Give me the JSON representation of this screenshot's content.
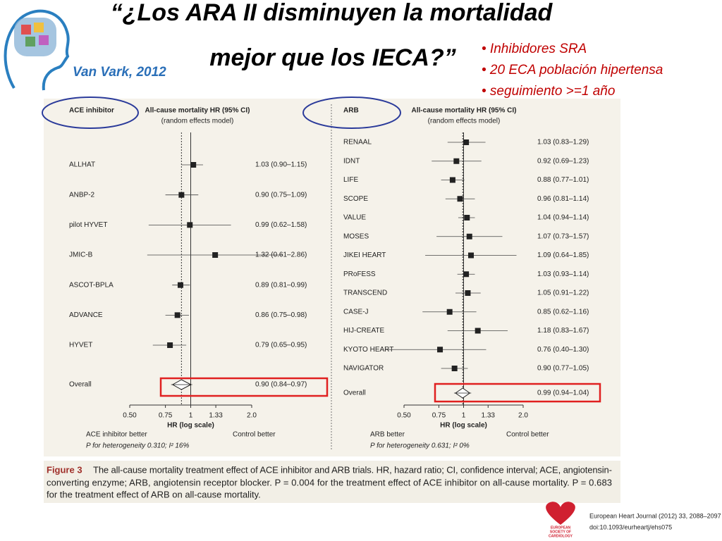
{
  "title": [
    "“¿Los ARA II disminuyen la mortalidad",
    "mejor que los IECA?”"
  ],
  "citation": "Van Vark, 2012",
  "bullets": [
    "• Inhibidores SRA",
    "• 20 ECA población hipertensa",
    "• seguimiento >=1 año"
  ],
  "chart_data": [
    {
      "type": "forest",
      "group_label": "ACE inhibitor",
      "title": "All-cause mortality HR (95% CI)",
      "subtitle": "(random effects model)",
      "categories": [
        "ALLHAT",
        "ANBP-2",
        "pilot HYVET",
        "JMIC-B",
        "ASCOT-BPLA",
        "ADVANCE",
        "HYVET"
      ],
      "values": [
        1.03,
        0.9,
        0.99,
        1.32,
        0.89,
        0.86,
        0.79
      ],
      "ci_low": [
        0.9,
        0.75,
        0.62,
        0.61,
        0.81,
        0.75,
        0.65
      ],
      "ci_high": [
        1.15,
        1.09,
        1.58,
        2.86,
        0.99,
        0.98,
        0.95
      ],
      "value_labels": [
        "1.03 (0.90–1.15)",
        "0.90 (0.75–1.09)",
        "0.99 (0.62–1.58)",
        "1.32 (0.61–2.86)",
        "0.89 (0.81–0.99)",
        "0.86 (0.75–0.98)",
        "0.79 (0.65–0.95)"
      ],
      "overall": {
        "label": "Overall",
        "value": 0.9,
        "ci_low": 0.84,
        "ci_high": 0.97,
        "value_label": "0.90 (0.84–0.97)"
      },
      "xlabel": "HR (log scale)",
      "xscale": "log",
      "xlim": [
        0.5,
        2
      ],
      "xticks": [
        {
          "value": 0.5,
          "label": "0.50"
        },
        0.75,
        1,
        1.33,
        {
          "value": 2,
          "label": "2.0"
        }
      ],
      "left_note": "ACE inhibitor better",
      "right_note": "Control better",
      "footnote": "P for heterogeneity 0.310; I² 16%"
    },
    {
      "type": "forest",
      "group_label": "ARB",
      "title": "All-cause mortality HR (95% CI)",
      "subtitle": "(random effects model)",
      "categories": [
        "RENAAL",
        "IDNT",
        "LIFE",
        "SCOPE",
        "VALUE",
        "MOSES",
        "JIKEI HEART",
        "PRoFESS",
        "TRANSCEND",
        "CASE-J",
        "HIJ-CREATE",
        "KYOTO HEART",
        "NAVIGATOR"
      ],
      "values": [
        1.03,
        0.92,
        0.88,
        0.96,
        1.04,
        1.07,
        1.09,
        1.03,
        1.05,
        0.85,
        1.18,
        0.76,
        0.9
      ],
      "ci_low": [
        0.83,
        0.69,
        0.77,
        0.81,
        0.94,
        0.73,
        0.64,
        0.93,
        0.91,
        0.62,
        0.83,
        0.4,
        0.77
      ],
      "ci_high": [
        1.29,
        1.23,
        1.01,
        1.14,
        1.14,
        1.57,
        1.85,
        1.14,
        1.22,
        1.16,
        1.67,
        1.3,
        1.05
      ],
      "value_labels": [
        "1.03 (0.83–1.29)",
        "0.92 (0.69–1.23)",
        "0.88 (0.77–1.01)",
        "0.96 (0.81–1.14)",
        "1.04 (0.94–1.14)",
        "1.07 (0.73–1.57)",
        "1.09 (0.64–1.85)",
        "1.03 (0.93–1.14)",
        "1.05 (0.91–1.22)",
        "0.85 (0.62–1.16)",
        "1.18 (0.83–1.67)",
        "0.76 (0.40–1.30)",
        "0.90 (0.77–1.05)"
      ],
      "overall": {
        "label": "Overall",
        "value": 0.99,
        "ci_low": 0.94,
        "ci_high": 1.04,
        "value_label": "0.99 (0.94–1.04)"
      },
      "xlabel": "HR (log scale)",
      "xscale": "log",
      "xlim": [
        0.5,
        2
      ],
      "xticks": [
        {
          "value": 0.5,
          "label": "0.50"
        },
        0.75,
        1,
        1.33,
        {
          "value": 2,
          "label": "2.0"
        }
      ],
      "left_note": "ARB better",
      "right_note": "Control better",
      "footnote": "P for heterogeneity 0.631; I² 0%"
    }
  ],
  "caption": {
    "label": "Figure 3",
    "lines": [
      "The all-cause mortality treatment effect of ACE inhibitor and ARB trials. HR, hazard ratio; CI, confidence interval; ACE, angiotensin-",
      "converting enzyme; ARB, angiotensin receptor blocker. P = 0.004 for the treatment effect of ACE inhibitor on all-cause mortality. P = 0.683",
      "for the treatment effect of ARB on all-cause mortality."
    ]
  },
  "journal": {
    "society": [
      "EUROPEAN",
      "SOCIETY OF",
      "CARDIOLOGY"
    ],
    "reference": "European Heart Journal (2012) 33, 2088–2097",
    "doi": "doi:10.1093/eurheartj/ehs075"
  }
}
